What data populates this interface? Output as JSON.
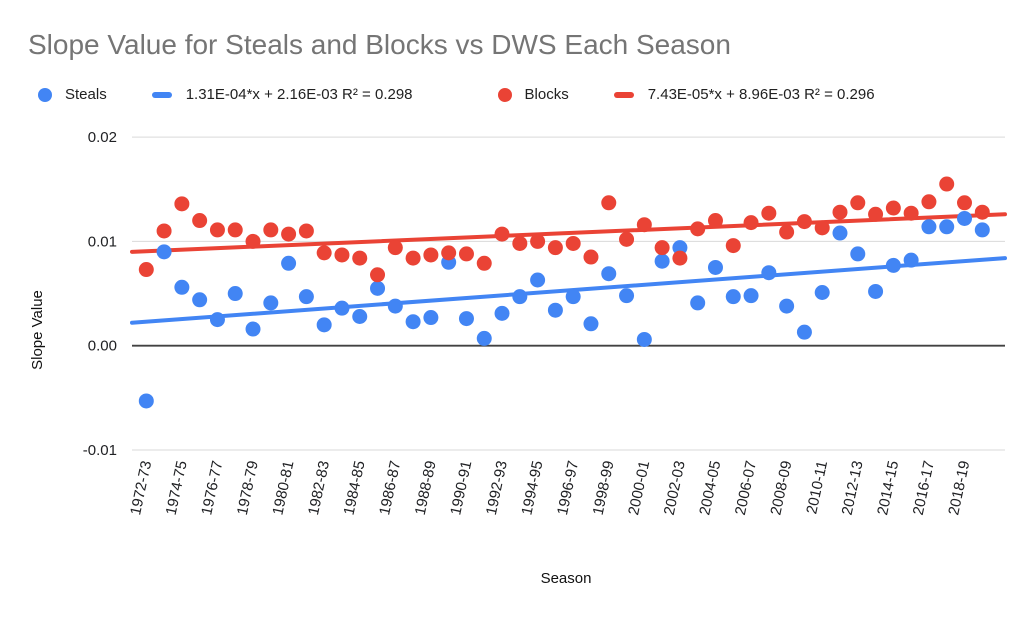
{
  "title": "Slope Value for Steals and Blocks vs DWS Each Season",
  "legend": {
    "steals_label": "Steals",
    "steals_trend_label": "1.31E-04*x + 2.16E-03 R² = 0.298",
    "blocks_label": "Blocks",
    "blocks_trend_label": "7.43E-05*x + 8.96E-03 R² = 0.296"
  },
  "colors": {
    "steals": "#4285F4",
    "blocks": "#EA4335",
    "title_text": "#757575",
    "legend_text": "#212121",
    "axis_text": "#202124",
    "gridline": "#d9d9d9",
    "zero_baseline": "#424242"
  },
  "chart_data": {
    "type": "scatter",
    "title": "Slope Value for Steals and Blocks vs DWS Each Season",
    "xlabel": "Season",
    "ylabel": "Slope Value",
    "legend_position": "top",
    "grid": true,
    "ylim": [
      -0.01,
      0.02
    ],
    "y_ticks": [
      0.02,
      0.01,
      0,
      -0.01
    ],
    "y_tick_labels": [
      "0.02",
      "0.01",
      "0.00",
      "-0.01"
    ],
    "x_label_step": 2,
    "categories": [
      "1972-73",
      "1973-74",
      "1974-75",
      "1975-76",
      "1976-77",
      "1977-78",
      "1978-79",
      "1979-80",
      "1980-81",
      "1981-82",
      "1982-83",
      "1983-84",
      "1984-85",
      "1985-86",
      "1986-87",
      "1987-88",
      "1988-89",
      "1989-90",
      "1990-91",
      "1991-92",
      "1992-93",
      "1993-94",
      "1994-95",
      "1995-96",
      "1996-97",
      "1997-98",
      "1998-99",
      "1999-00",
      "2000-01",
      "2001-02",
      "2002-03",
      "2003-04",
      "2004-05",
      "2005-06",
      "2006-07",
      "2007-08",
      "2008-09",
      "2009-10",
      "2010-11",
      "2011-12",
      "2012-13",
      "2013-14",
      "2014-15",
      "2015-16",
      "2016-17",
      "2017-18",
      "2018-19",
      "2019-20"
    ],
    "series": [
      {
        "name": "Steals",
        "color": "#4285F4",
        "values": [
          -0.0053,
          0.009,
          0.0056,
          0.0044,
          0.0025,
          0.005,
          0.0016,
          0.0041,
          0.0079,
          0.0047,
          0.002,
          0.0036,
          0.0028,
          0.0055,
          0.0038,
          0.0023,
          0.0027,
          0.008,
          0.0026,
          0.0007,
          0.0031,
          0.0047,
          0.0063,
          0.0034,
          0.0047,
          0.0021,
          0.0069,
          0.0048,
          0.0006,
          0.0081,
          0.0094,
          0.0041,
          0.0075,
          0.0047,
          0.0048,
          0.007,
          0.0038,
          0.0013,
          0.0051,
          0.0108,
          0.0088,
          0.0052,
          0.0077,
          0.0082,
          0.0114,
          0.0114,
          0.0122,
          0.0111
        ]
      },
      {
        "name": "Blocks",
        "color": "#EA4335",
        "values": [
          0.0073,
          0.011,
          0.0136,
          0.012,
          0.0111,
          0.0111,
          0.01,
          0.0111,
          0.0107,
          0.011,
          0.0089,
          0.0087,
          0.0084,
          0.0068,
          0.0094,
          0.0084,
          0.0087,
          0.0089,
          0.0088,
          0.0079,
          0.0107,
          0.0098,
          0.01,
          0.0094,
          0.0098,
          0.0085,
          0.0137,
          0.0102,
          0.0116,
          0.0094,
          0.0084,
          0.0112,
          0.012,
          0.0096,
          0.0118,
          0.0127,
          0.0109,
          0.0119,
          0.0113,
          0.0128,
          0.0137,
          0.0126,
          0.0132,
          0.0127,
          0.0138,
          0.0155,
          0.0137,
          0.0128
        ]
      }
    ],
    "trendlines": [
      {
        "series": "Steals",
        "label": "1.31E-04*x + 2.16E-03 R² = 0.298",
        "equation": "1.31E-04*x + 2.16E-03",
        "r2": 0.298,
        "start_value": 0.0022,
        "end_value": 0.0084,
        "color": "#4285F4"
      },
      {
        "series": "Blocks",
        "label": "7.43E-05*x + 8.96E-03 R² = 0.296",
        "equation": "7.43E-05*x + 8.96E-03",
        "r2": 0.296,
        "start_value": 0.009,
        "end_value": 0.0126,
        "color": "#EA4335"
      }
    ]
  }
}
